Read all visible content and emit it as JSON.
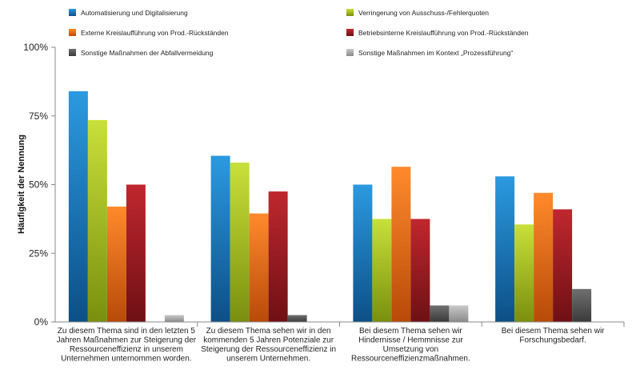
{
  "chart_data": {
    "type": "bar",
    "ylabel": "Häufigkeit der Nennung",
    "ylim": [
      0,
      100
    ],
    "yticks": [
      "0%",
      "25%",
      "50%",
      "75%",
      "100%"
    ],
    "ytick_values": [
      0,
      25,
      50,
      75,
      100
    ],
    "grid": false,
    "legend_position": "top",
    "categories": [
      [
        "Zu diesem Thema sind in den letzten 5",
        "Jahren Maßnahmen zur Steigerung der",
        "Ressourceneffizienz in unserem",
        "Unternehmen unternommen worden."
      ],
      [
        "Zu diesem Thema sehen wir in den",
        "kommenden 5 Jahren Potenziale zur",
        "Steigerung der Ressourceneffizienz in",
        "unserem Unternehmen."
      ],
      [
        "Bei diesem Thema sehen wir",
        "Hindernisse / Hemmnisse zur",
        "Umsetzung von",
        "Ressourceneffizienzmaßnahmen."
      ],
      [
        "Bei diesem Thema sehen wir",
        "Forschungsbedarf."
      ]
    ],
    "series": [
      {
        "name": "Automatisierung und Digitalisierung",
        "color": "#1a7cc1",
        "values": [
          84,
          60.5,
          50,
          53
        ]
      },
      {
        "name": "Verringerung von Ausschuss-/Fehlerquoten",
        "color": "#a9c41a",
        "values": [
          73.5,
          58,
          37.5,
          35.5
        ]
      },
      {
        "name": "Externe Kreislaufführung von Prod.-Rückständen",
        "color": "#f06a14",
        "values": [
          42,
          39.5,
          56.5,
          47
        ]
      },
      {
        "name": "Betriebsinterne Kreislaufführung von Prod.-Rückständen",
        "color": "#a61b22",
        "values": [
          50,
          47.5,
          37.5,
          41
        ]
      },
      {
        "name": "Sonstige Maßnahmen der Abfallvermeidung",
        "color": "#555555",
        "values": [
          0,
          2.5,
          6,
          12
        ]
      },
      {
        "name": "Sonstige Maßnahmen im Kontext „Prozessführung“",
        "color": "#a8a8a8",
        "values": [
          2.5,
          0,
          6,
          0
        ]
      }
    ]
  }
}
